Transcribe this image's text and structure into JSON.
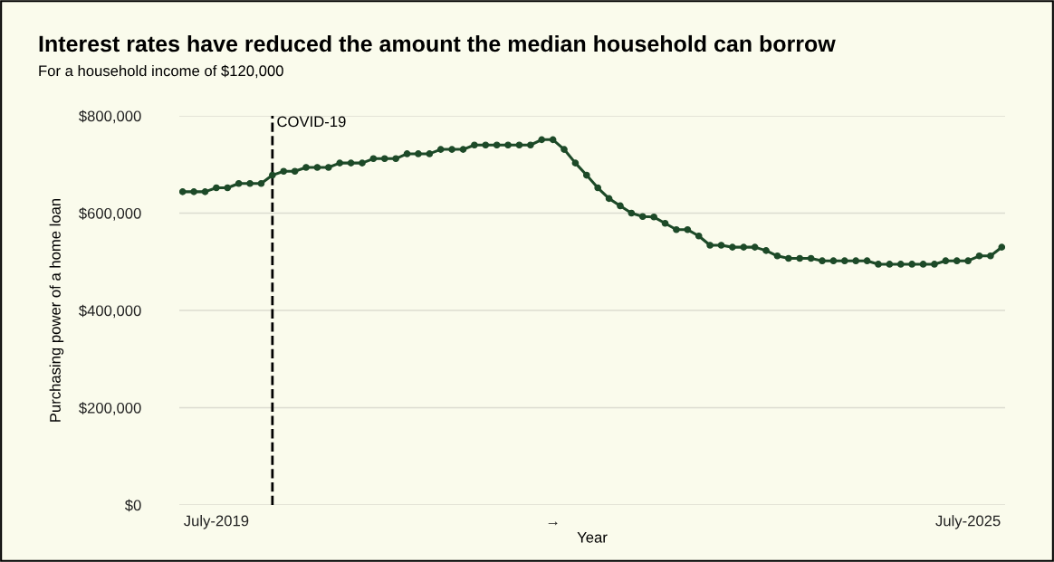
{
  "chart_data": {
    "type": "line",
    "title": "Interest rates have reduced the amount the median household can borrow",
    "subtitle": "For a household income of $120,000",
    "xlabel": "Year",
    "ylabel": "Purchasing power of a home loan",
    "categories": [
      null,
      null,
      null,
      "July-2019",
      null,
      null,
      null,
      null,
      null,
      null,
      null,
      null,
      null,
      null,
      null,
      null,
      null,
      null,
      null,
      null,
      null,
      null,
      null,
      null,
      null,
      null,
      null,
      null,
      null,
      null,
      null,
      null,
      null,
      "→",
      null,
      null,
      null,
      null,
      null,
      null,
      null,
      null,
      null,
      null,
      null,
      null,
      null,
      null,
      null,
      null,
      null,
      null,
      null,
      null,
      null,
      null,
      null,
      null,
      null,
      null,
      null,
      null,
      null,
      null,
      null,
      null,
      null,
      null,
      null,
      null,
      "July-2025",
      null,
      null,
      null
    ],
    "series": [
      {
        "color": "#1d4a28",
        "values": [
          644000,
          644000,
          644000,
          652000,
          652000,
          661000,
          661000,
          661000,
          678000,
          686000,
          686000,
          694000,
          694000,
          694000,
          703000,
          703000,
          703000,
          712000,
          712000,
          712000,
          722000,
          722000,
          722000,
          731000,
          731000,
          731000,
          740000,
          740000,
          740000,
          740000,
          740000,
          740000,
          751000,
          751000,
          731000,
          703000,
          678000,
          652000,
          630000,
          615000,
          600000,
          593000,
          592000,
          579000,
          566000,
          566000,
          553000,
          534000,
          534000,
          530000,
          530000,
          530000,
          523000,
          512000,
          507000,
          507000,
          507000,
          502000,
          502000,
          502000,
          502000,
          502000,
          495000,
          495000,
          495000,
          495000,
          495000,
          495000,
          502000,
          502000,
          502000,
          512000,
          512000,
          530000
        ]
      }
    ],
    "ylim": [
      0,
      800000
    ],
    "yticks": [
      {
        "value": 0,
        "label": "$0"
      },
      {
        "value": 200000,
        "label": "$200,000"
      },
      {
        "value": 400000,
        "label": "$400,000"
      },
      {
        "value": 600000,
        "label": "$600,000"
      },
      {
        "value": 800000,
        "label": "$800,000"
      }
    ],
    "annotations": [
      "COVID-19"
    ],
    "grid": "y",
    "marker": "circle",
    "line_style": "solid"
  }
}
